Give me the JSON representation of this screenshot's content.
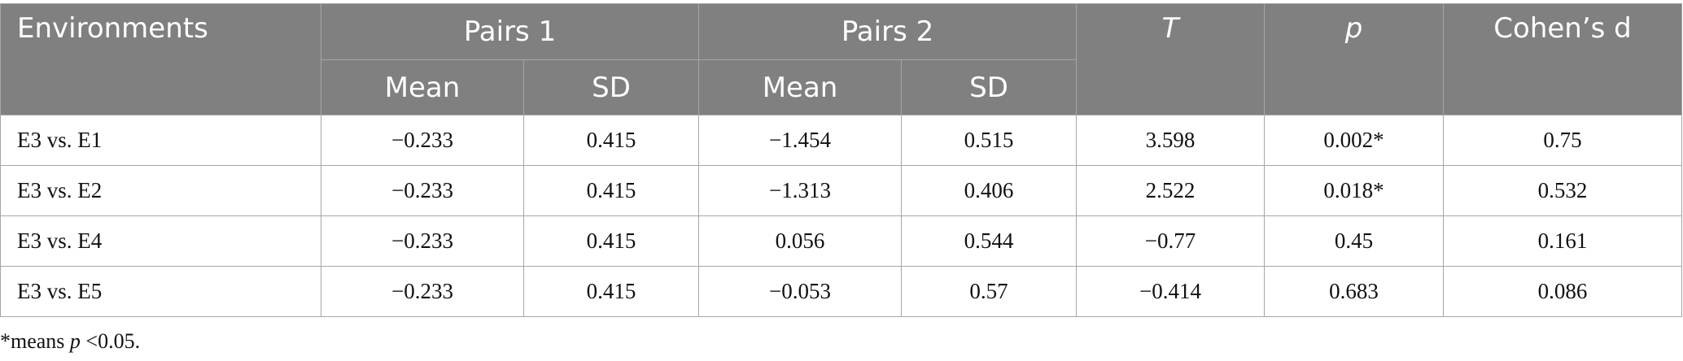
{
  "header": {
    "environments": "Environments",
    "pairs1": "Pairs 1",
    "pairs2": "Pairs 2",
    "t": "T",
    "p": "p",
    "cohens_d": "Cohen’s d",
    "mean1": "Mean",
    "sd1": "SD",
    "mean2": "Mean",
    "sd2": "SD"
  },
  "rows": [
    {
      "env": "E3 vs. E1",
      "mean1": "−0.233",
      "sd1": "0.415",
      "mean2": "−1.454",
      "sd2": "0.515",
      "t": "3.598",
      "p": "0.002*",
      "d": "0.75"
    },
    {
      "env": "E3 vs. E2",
      "mean1": "−0.233",
      "sd1": "0.415",
      "mean2": "−1.313",
      "sd2": "0.406",
      "t": "2.522",
      "p": "0.018*",
      "d": "0.532"
    },
    {
      "env": "E3 vs. E4",
      "mean1": "−0.233",
      "sd1": "0.415",
      "mean2": "0.056",
      "sd2": "0.544",
      "t": "−0.77",
      "p": "0.45",
      "d": "0.161"
    },
    {
      "env": "E3 vs. E5",
      "mean1": "−0.233",
      "sd1": "0.415",
      "mean2": "−0.053",
      "sd2": "0.57",
      "t": "−0.414",
      "p": "0.683",
      "d": "0.086"
    }
  ],
  "footnote": {
    "prefix": "*means ",
    "p": "p",
    "suffix": " <0.05."
  }
}
